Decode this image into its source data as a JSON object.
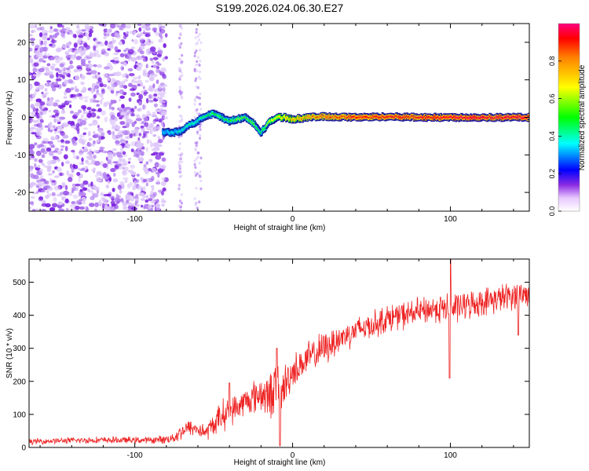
{
  "figure_title": "S199.2026.024.06.30.E27",
  "chart_data": [
    {
      "type": "heatmap",
      "title": "",
      "xlabel": "Height of straight line (km)",
      "ylabel": "Frequency (Hz)",
      "xlim": [
        -167,
        150
      ],
      "ylim": [
        -25,
        25
      ],
      "xticks": [
        -100,
        0,
        100
      ],
      "xtick_labels": [
        "-100",
        "0",
        "100"
      ],
      "yticks": [
        -20,
        -10,
        0,
        10,
        20
      ],
      "ytick_labels": [
        "-20",
        "-10",
        "0",
        "10",
        "20"
      ],
      "colorbar_label": "Normalized spectral amplitude",
      "colorbar_range": [
        0,
        1
      ],
      "colorbar_ticks": [
        0,
        0.2,
        0.4,
        0.6,
        0.8
      ],
      "colorbar_tick_labels": [
        "0.0",
        "0.2",
        "0.4",
        "0.6",
        "0.8"
      ],
      "noise_region_x": [
        -167,
        -80
      ],
      "ridge": {
        "x": [
          -82,
          -75,
          -70,
          -65,
          -60,
          -55,
          -50,
          -45,
          -40,
          -35,
          -30,
          -25,
          -20,
          -15,
          -10,
          -5,
          0,
          10,
          20,
          40,
          60,
          80,
          100,
          120,
          150
        ],
        "y": [
          -4,
          -4,
          -3.5,
          -2,
          -1,
          0.5,
          1,
          0,
          -1,
          -0.5,
          0,
          -1.5,
          -4,
          -1.5,
          0,
          0,
          -0.5,
          0,
          0.2,
          0,
          0.2,
          0,
          0,
          0,
          0
        ],
        "amplitude": [
          0.3,
          0.35,
          0.4,
          0.4,
          0.4,
          0.45,
          0.5,
          0.5,
          0.5,
          0.55,
          0.5,
          0.55,
          0.45,
          0.6,
          0.65,
          0.7,
          0.75,
          0.8,
          0.85,
          0.9,
          0.9,
          0.92,
          0.95,
          0.95,
          0.95
        ]
      }
    },
    {
      "type": "line",
      "title": "",
      "xlabel": "Height of straight line (km)",
      "ylabel": "SNR (10 * v/v)",
      "xlim": [
        -167,
        150
      ],
      "ylim": [
        0,
        570
      ],
      "xticks": [
        -100,
        0,
        100
      ],
      "xtick_labels": [
        "-100",
        "0",
        "100"
      ],
      "yticks": [
        0,
        100,
        200,
        300,
        400,
        500
      ],
      "ytick_labels": [
        "0",
        "100",
        "200",
        "300",
        "400",
        "500"
      ],
      "series": [
        {
          "name": "SNR",
          "color": "#ee2222",
          "x": [
            -167,
            -150,
            -130,
            -110,
            -90,
            -80,
            -75,
            -70,
            -65,
            -60,
            -55,
            -50,
            -45,
            -40,
            -35,
            -30,
            -25,
            -20,
            -15,
            -10,
            -8,
            -5,
            0,
            10,
            20,
            30,
            40,
            50,
            60,
            70,
            80,
            90,
            100,
            110,
            120,
            130,
            140,
            150
          ],
          "y": [
            18,
            20,
            22,
            22,
            22,
            25,
            30,
            50,
            60,
            55,
            45,
            70,
            95,
            110,
            120,
            140,
            150,
            165,
            150,
            200,
            140,
            190,
            230,
            270,
            300,
            330,
            355,
            370,
            390,
            400,
            410,
            420,
            420,
            430,
            440,
            450,
            460,
            465
          ],
          "noise_amplitude": [
            10,
            10,
            12,
            12,
            12,
            15,
            20,
            30,
            30,
            30,
            30,
            40,
            60,
            50,
            50,
            50,
            60,
            70,
            80,
            100,
            60,
            80,
            60,
            60,
            60,
            55,
            50,
            50,
            50,
            50,
            50,
            50,
            60,
            50,
            50,
            50,
            50,
            50
          ],
          "spikes": [
            {
              "x": 100,
              "y": 570
            },
            {
              "x": 99.5,
              "y": 210
            },
            {
              "x": -10,
              "y": 300
            },
            {
              "x": -8,
              "y": 5
            },
            {
              "x": -40,
              "y": 195
            },
            {
              "x": 143,
              "y": 340
            }
          ]
        }
      ]
    }
  ]
}
